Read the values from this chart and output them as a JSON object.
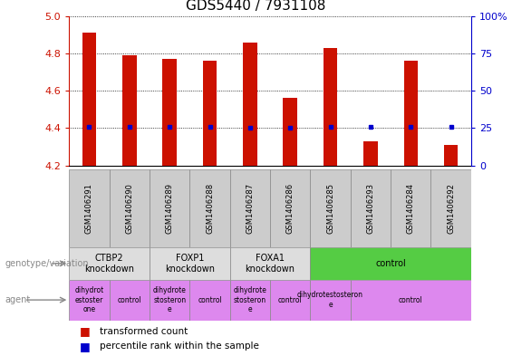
{
  "title": "GDS5440 / 7931108",
  "samples": [
    "GSM1406291",
    "GSM1406290",
    "GSM1406289",
    "GSM1406288",
    "GSM1406287",
    "GSM1406286",
    "GSM1406285",
    "GSM1406293",
    "GSM1406284",
    "GSM1406292"
  ],
  "transformed_count": [
    4.91,
    4.79,
    4.77,
    4.76,
    4.86,
    4.56,
    4.83,
    4.33,
    4.76,
    4.31
  ],
  "percentile_rank": [
    26,
    26,
    26,
    26,
    25,
    25,
    26,
    26,
    26,
    26
  ],
  "ylim": [
    4.2,
    5.0
  ],
  "yticks": [
    4.2,
    4.4,
    4.6,
    4.8,
    5.0
  ],
  "y2lim": [
    0,
    100
  ],
  "y2ticks": [
    0,
    25,
    50,
    75,
    100
  ],
  "bar_color": "#cc1100",
  "dot_color": "#0000cc",
  "genotype_groups": [
    {
      "label": "CTBP2\nknockdown",
      "start": 0,
      "end": 2,
      "color": "#dddddd"
    },
    {
      "label": "FOXP1\nknockdown",
      "start": 2,
      "end": 4,
      "color": "#dddddd"
    },
    {
      "label": "FOXA1\nknockdown",
      "start": 4,
      "end": 6,
      "color": "#dddddd"
    },
    {
      "label": "control",
      "start": 6,
      "end": 10,
      "color": "#55cc44"
    }
  ],
  "agent_groups": [
    {
      "label": "dihydrot\nestoster\none",
      "start": 0,
      "end": 1,
      "color": "#dd88ee"
    },
    {
      "label": "control",
      "start": 1,
      "end": 2,
      "color": "#dd88ee"
    },
    {
      "label": "dihydrote\nstosteron\ne",
      "start": 2,
      "end": 3,
      "color": "#dd88ee"
    },
    {
      "label": "control",
      "start": 3,
      "end": 4,
      "color": "#dd88ee"
    },
    {
      "label": "dihydrote\nstosteron\ne",
      "start": 4,
      "end": 5,
      "color": "#dd88ee"
    },
    {
      "label": "control",
      "start": 5,
      "end": 6,
      "color": "#dd88ee"
    },
    {
      "label": "dihydrotestosteron\ne",
      "start": 6,
      "end": 7,
      "color": "#dd88ee"
    },
    {
      "label": "control",
      "start": 7,
      "end": 10,
      "color": "#dd88ee"
    }
  ],
  "legend_items": [
    {
      "color": "#cc1100",
      "label": "transformed count"
    },
    {
      "color": "#0000cc",
      "label": "percentile rank within the sample"
    }
  ],
  "bar_width": 0.35,
  "fig_width": 5.65,
  "fig_height": 3.93,
  "dpi": 100
}
